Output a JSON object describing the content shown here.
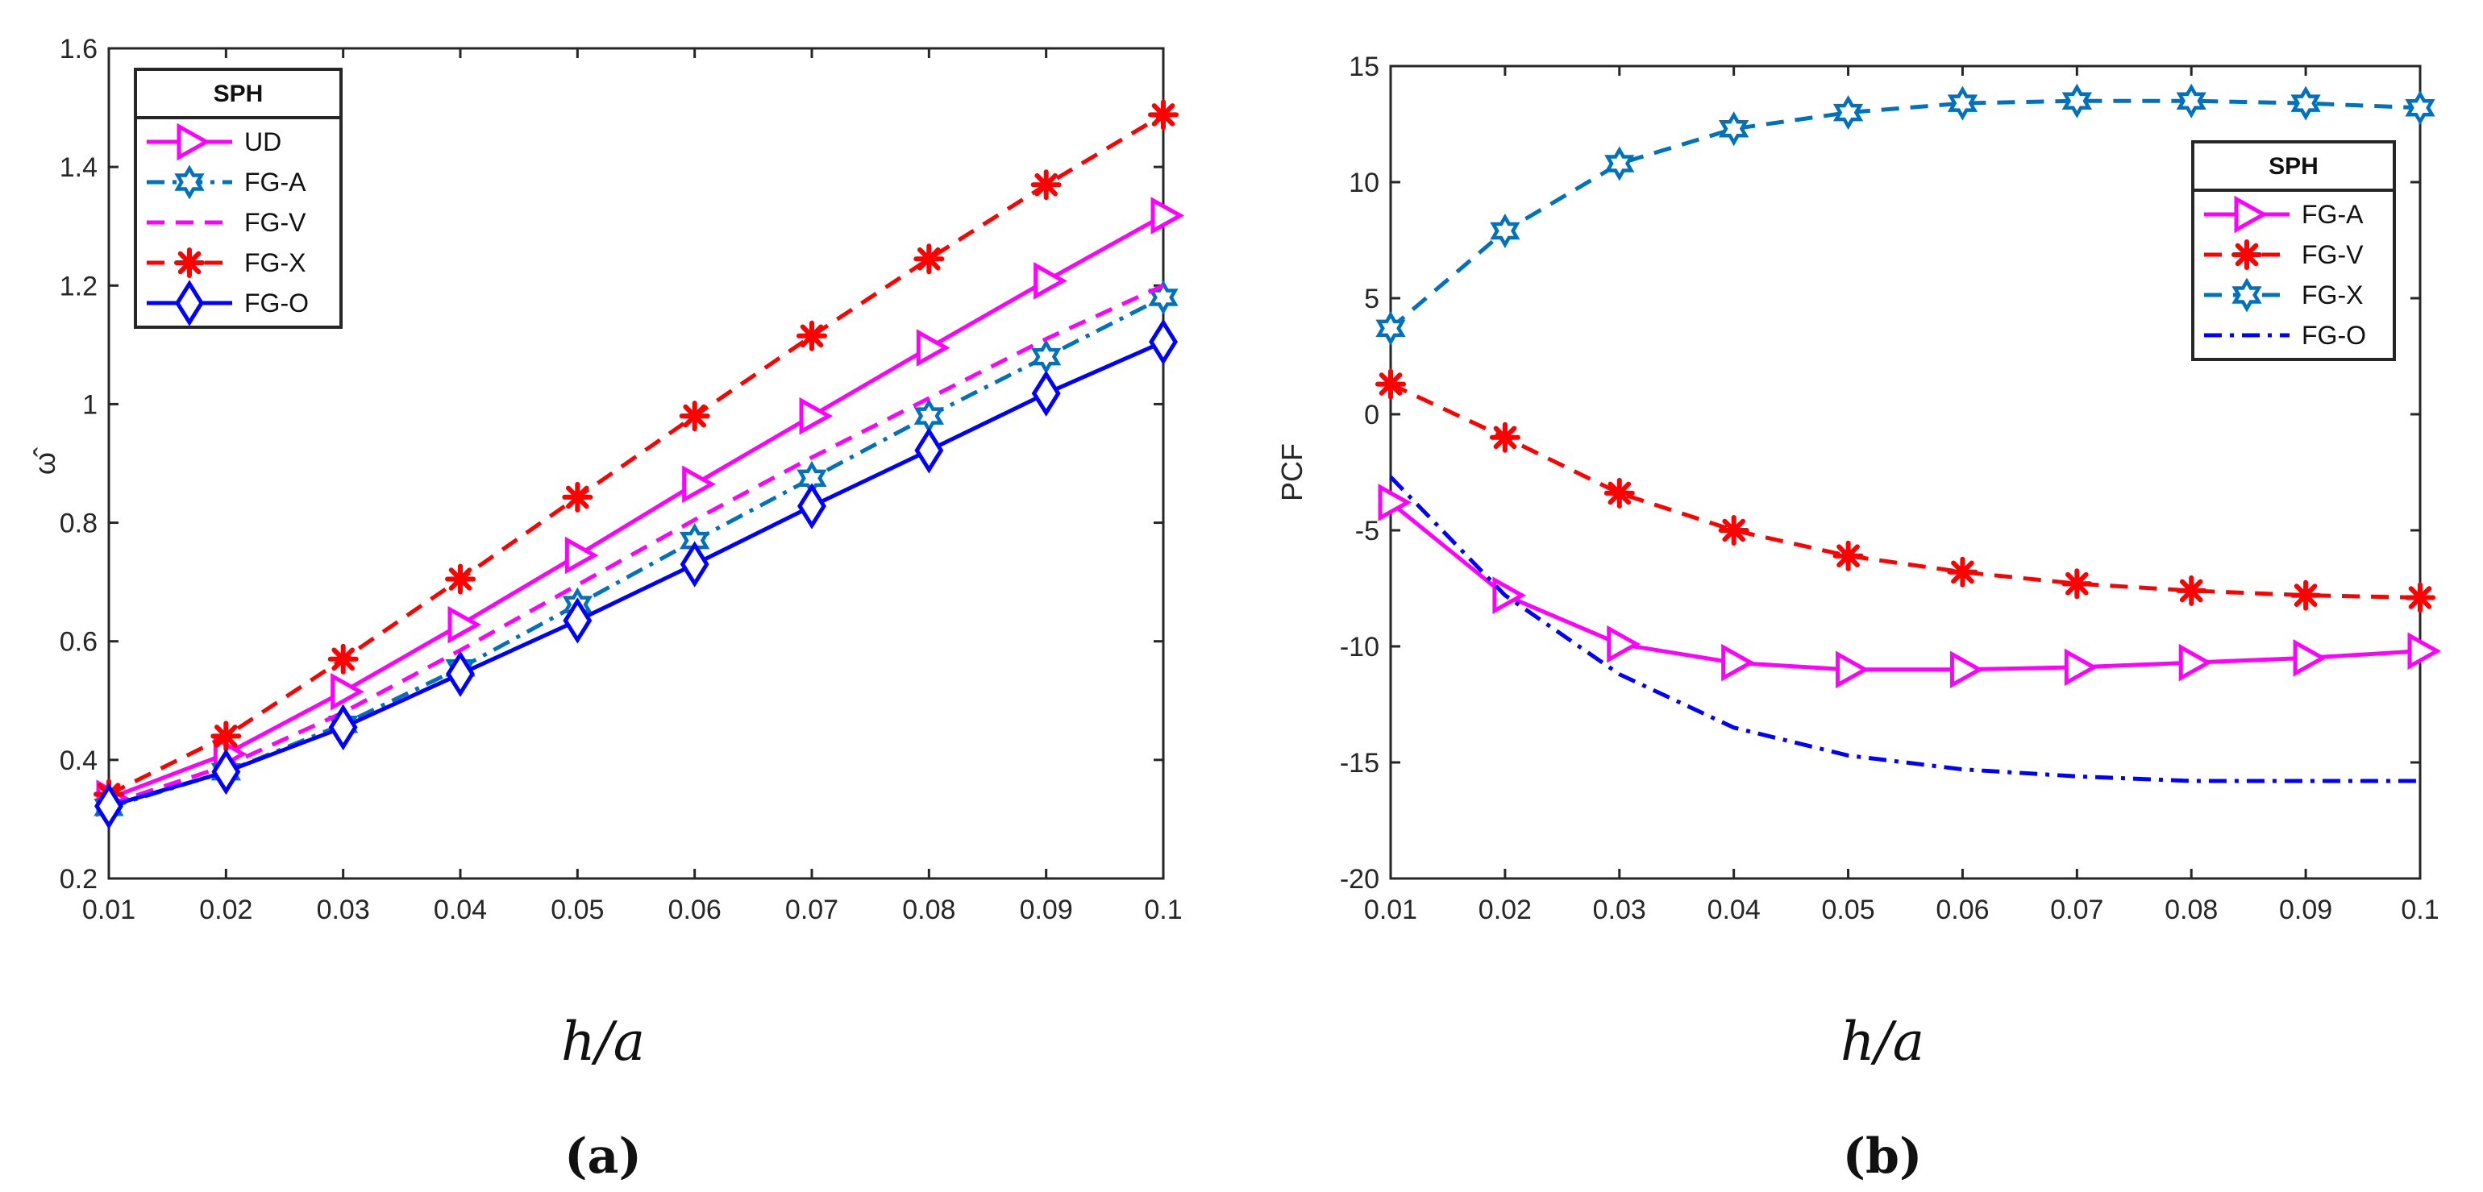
{
  "colors": {
    "magenta": "#ff00ff",
    "red": "#ff0000",
    "blue": "#0000ff",
    "teal": "#0072bd",
    "axis": "#262626"
  },
  "chart_data": [
    {
      "id": "a",
      "type": "line",
      "panel_label": "(a)",
      "xlabel": "h/a",
      "ylabel": "ω̂",
      "xlim": [
        0.01,
        0.1
      ],
      "ylim": [
        0.2,
        1.6
      ],
      "xticks": [
        "0.01",
        "0.02",
        "0.03",
        "0.04",
        "0.05",
        "0.06",
        "0.07",
        "0.08",
        "0.09",
        "0.1"
      ],
      "yticks": [
        "0.2",
        "0.4",
        "0.6",
        "0.8",
        "1",
        "1.2",
        "1.4",
        "1.6"
      ],
      "x": [
        0.01,
        0.02,
        0.03,
        0.04,
        0.05,
        0.06,
        0.07,
        0.08,
        0.09,
        0.1
      ],
      "legend_title": "SPH",
      "legend_position": "top-left",
      "series": [
        {
          "name": "UD",
          "color": "#ff00ff",
          "dash": "solid",
          "marker": "triangle-right",
          "values": [
            0.335,
            0.41,
            0.515,
            0.628,
            0.745,
            0.865,
            0.98,
            1.095,
            1.208,
            1.318
          ]
        },
        {
          "name": "FG-A",
          "color": "#0072bd",
          "dash": "dashdot",
          "marker": "hexagram",
          "values": [
            0.32,
            0.38,
            0.46,
            0.555,
            0.662,
            0.77,
            0.875,
            0.98,
            1.08,
            1.18
          ]
        },
        {
          "name": "FG-V",
          "color": "#ff00ff",
          "dash": "dashed",
          "marker": "none",
          "values": [
            0.325,
            0.39,
            0.48,
            0.585,
            0.695,
            0.805,
            0.91,
            1.01,
            1.11,
            1.2
          ]
        },
        {
          "name": "FG-X",
          "color": "#ff0000",
          "dash": "dashed",
          "marker": "asterisk",
          "values": [
            0.342,
            0.44,
            0.57,
            0.705,
            0.843,
            0.98,
            1.115,
            1.245,
            1.37,
            1.488
          ]
        },
        {
          "name": "FG-O",
          "color": "#0000ff",
          "dash": "solid",
          "marker": "diamond",
          "values": [
            0.322,
            0.38,
            0.455,
            0.545,
            0.635,
            0.73,
            0.828,
            0.922,
            1.018,
            1.105
          ]
        }
      ]
    },
    {
      "id": "b",
      "type": "line",
      "panel_label": "(b)",
      "xlabel": "h/a",
      "ylabel": "PCF",
      "xlim": [
        0.01,
        0.1
      ],
      "ylim": [
        -20,
        15
      ],
      "xticks": [
        "0.01",
        "0.02",
        "0.03",
        "0.04",
        "0.05",
        "0.06",
        "0.07",
        "0.08",
        "0.09",
        "0.1"
      ],
      "yticks": [
        "-20",
        "-15",
        "-10",
        "-5",
        "0",
        "5",
        "10",
        "15"
      ],
      "x": [
        0.01,
        0.02,
        0.03,
        0.04,
        0.05,
        0.06,
        0.07,
        0.08,
        0.09,
        0.1
      ],
      "legend_title": "SPH",
      "legend_position": "top-right",
      "series": [
        {
          "name": "FG-A",
          "color": "#ff00ff",
          "dash": "solid",
          "marker": "triangle-right",
          "values": [
            -3.8,
            -7.8,
            -9.9,
            -10.7,
            -11.0,
            -11.0,
            -10.9,
            -10.7,
            -10.5,
            -10.2
          ]
        },
        {
          "name": "FG-V",
          "color": "#ff0000",
          "dash": "dashed",
          "marker": "asterisk",
          "values": [
            1.3,
            -1.0,
            -3.4,
            -5.0,
            -6.1,
            -6.8,
            -7.3,
            -7.6,
            -7.8,
            -7.9
          ]
        },
        {
          "name": "FG-X",
          "color": "#0072bd",
          "dash": "dashed",
          "marker": "hexagram",
          "values": [
            3.7,
            7.9,
            10.8,
            12.3,
            13.0,
            13.4,
            13.5,
            13.5,
            13.4,
            13.2
          ]
        },
        {
          "name": "FG-O",
          "color": "#0000ff",
          "dash": "dashdot",
          "marker": "none",
          "values": [
            -2.7,
            -7.8,
            -11.2,
            -13.5,
            -14.7,
            -15.3,
            -15.6,
            -15.8,
            -15.8,
            -15.8
          ]
        }
      ]
    }
  ]
}
